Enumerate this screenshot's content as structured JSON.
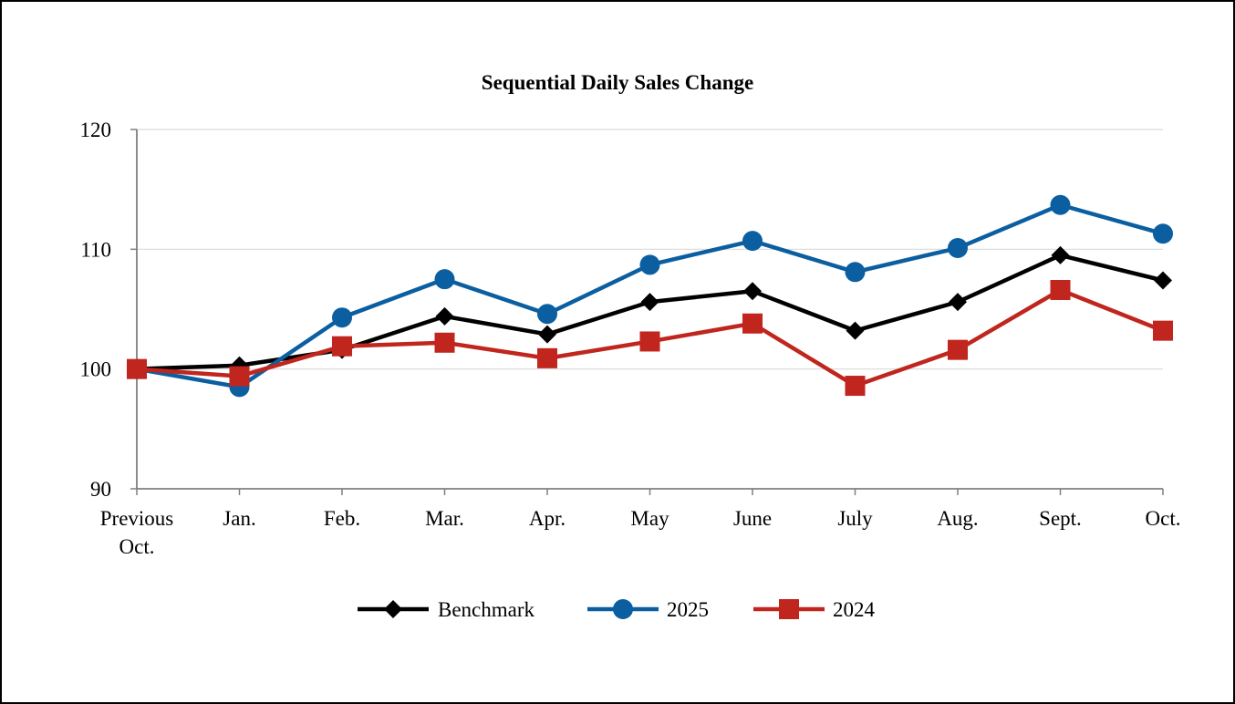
{
  "chart_data": {
    "type": "line",
    "title": "Sequential Daily Sales Change",
    "xlabel": "",
    "ylabel": "",
    "ylim": [
      90,
      120
    ],
    "yticks": [
      90,
      100,
      110,
      120
    ],
    "categories": [
      [
        "Previous",
        "Oct."
      ],
      [
        "Jan."
      ],
      [
        "Feb."
      ],
      [
        "Mar."
      ],
      [
        "Apr."
      ],
      [
        "May"
      ],
      [
        "June"
      ],
      [
        "July"
      ],
      [
        "Aug."
      ],
      [
        "Sept."
      ],
      [
        "Oct."
      ]
    ],
    "grid": true,
    "legend_position": "bottom",
    "series": [
      {
        "name": "Benchmark",
        "color": "#000000",
        "marker": "diamond",
        "values": [
          100.0,
          100.3,
          101.6,
          104.4,
          102.9,
          105.6,
          106.5,
          103.2,
          105.6,
          109.5,
          107.4
        ]
      },
      {
        "name": "2025",
        "color": "#0b5fa0",
        "marker": "circle",
        "values": [
          100.0,
          98.5,
          104.3,
          107.5,
          104.6,
          108.7,
          110.7,
          108.1,
          110.1,
          113.7,
          111.3
        ]
      },
      {
        "name": "2024",
        "color": "#c0251e",
        "marker": "square",
        "values": [
          100.0,
          99.4,
          101.9,
          102.2,
          100.9,
          102.3,
          103.8,
          98.6,
          101.6,
          106.6,
          103.2
        ]
      }
    ]
  }
}
